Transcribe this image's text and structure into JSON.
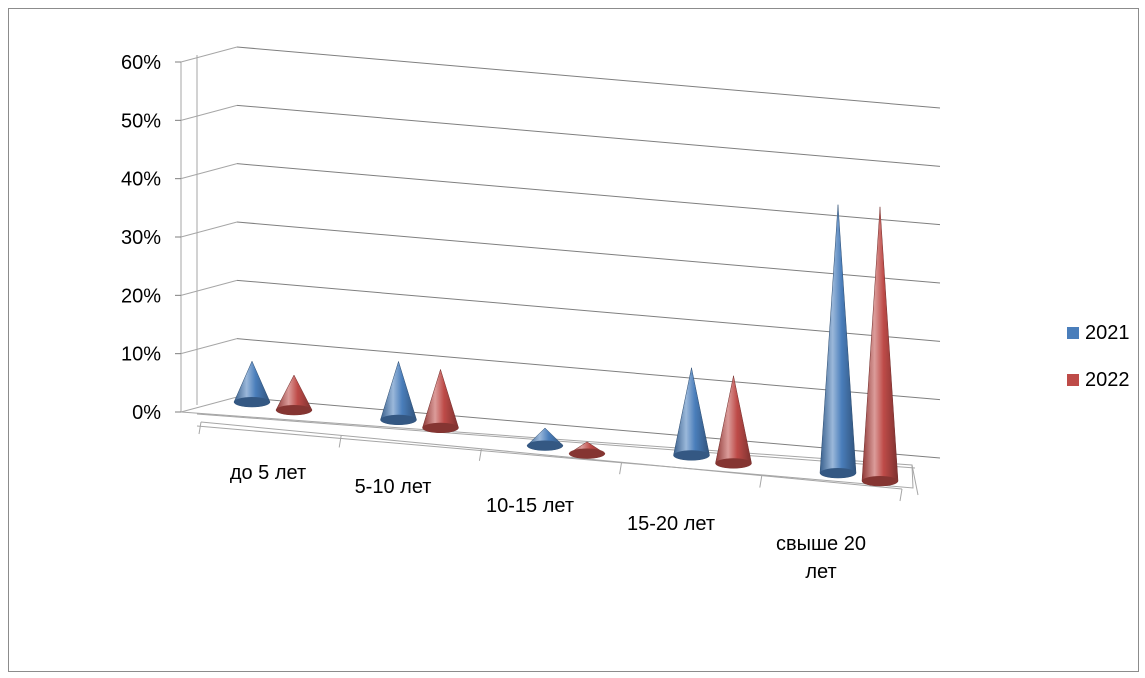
{
  "chart_data": {
    "type": "bar",
    "style": "3d-cone",
    "categories": [
      "до 5 лет",
      "5-10 лет",
      "10-15 лет",
      "15-20 лет",
      "свыше 20 лет"
    ],
    "series": [
      {
        "name": "2021",
        "color": "#4a7ebb",
        "values": [
          0.07,
          0.1,
          0.03,
          0.15,
          0.46
        ]
      },
      {
        "name": "2022",
        "color": "#be4b48",
        "values": [
          0.06,
          0.1,
          0.02,
          0.15,
          0.47
        ]
      }
    ],
    "y_ticks": [
      "0%",
      "10%",
      "20%",
      "30%",
      "40%",
      "50%",
      "60%"
    ],
    "ylim": [
      0,
      0.6
    ],
    "grid": true,
    "legend_position": "right"
  }
}
